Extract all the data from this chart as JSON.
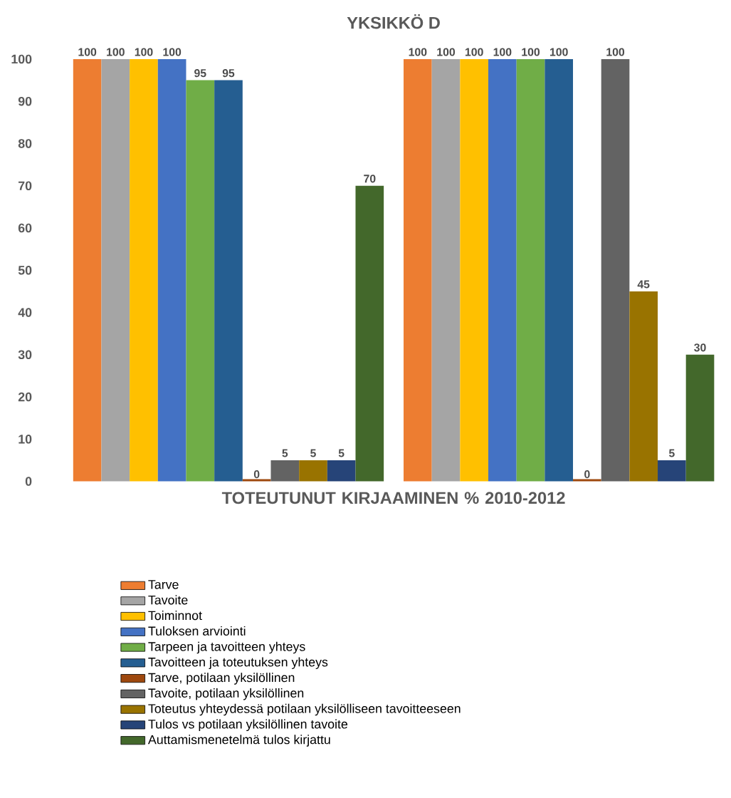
{
  "chart_data": {
    "type": "bar",
    "title": "YKSIKKÖ D",
    "xlabel": "TOTEUTUNUT KIRJAAMINEN % 2010-2012",
    "categories": [
      null,
      null
    ],
    "series": [
      {
        "name": "Tarve",
        "color": "#ed7d31",
        "values": [
          100,
          100
        ]
      },
      {
        "name": "Tavoite",
        "color": "#a5a5a5",
        "values": [
          100,
          100
        ]
      },
      {
        "name": "Toiminnot",
        "color": "#ffc000",
        "values": [
          100,
          100
        ]
      },
      {
        "name": "Tuloksen arviointi",
        "color": "#4472c4",
        "values": [
          100,
          100
        ]
      },
      {
        "name": "Tarpeen ja tavoitteen yhteys",
        "color": "#70ad47",
        "values": [
          95,
          100
        ]
      },
      {
        "name": "Tavoitteen ja toteutuksen yhteys",
        "color": "#255e91",
        "values": [
          95,
          100
        ]
      },
      {
        "name": "Tarve, potilaan yksilöllinen",
        "color": "#9e480e",
        "values": [
          0,
          0
        ]
      },
      {
        "name": "Tavoite, potilaan yksilöllinen",
        "color": "#636363",
        "values": [
          5,
          100
        ]
      },
      {
        "name": "Toteutus yhteydessä potilaan yksilölliseen tavoitteeseen",
        "color": "#997300",
        "values": [
          5,
          45
        ]
      },
      {
        "name": "Tulos vs potilaan yksilöllinen tavoite",
        "color": "#264478",
        "values": [
          5,
          5
        ]
      },
      {
        "name": "Auttamismenetelmä tulos kirjattu",
        "color": "#43682b",
        "values": [
          70,
          30
        ]
      }
    ],
    "ylim": [
      0,
      100
    ],
    "yticks": [
      0,
      10,
      20,
      30,
      40,
      50,
      60,
      70,
      80,
      90,
      100
    ],
    "data_labels": true,
    "grid": false,
    "legend": "bottom"
  }
}
